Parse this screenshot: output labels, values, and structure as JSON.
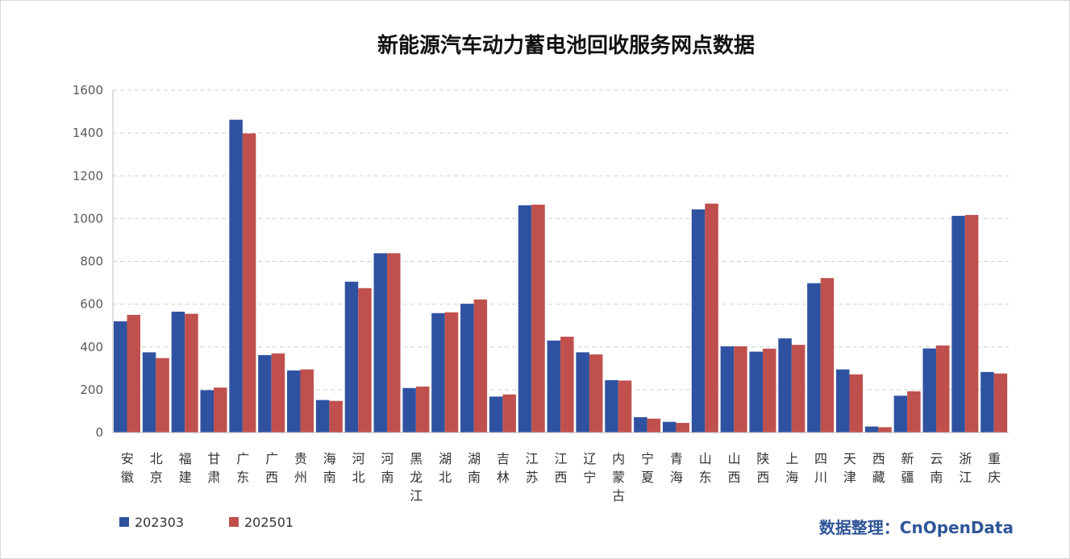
{
  "chart_data": {
    "type": "bar",
    "title": "新能源汽车动力蓄电池回收服务网点数据",
    "xlabel": "",
    "ylabel": "",
    "ylim": [
      0,
      1600
    ],
    "yticks": [
      0,
      200,
      400,
      600,
      800,
      1000,
      1200,
      1400,
      1600
    ],
    "grid": true,
    "legend_position": "bottom-left",
    "categories": [
      "安徽",
      "北京",
      "福建",
      "甘肃",
      "广东",
      "广西",
      "贵州",
      "海南",
      "河北",
      "河南",
      "黑龙江",
      "湖北",
      "湖南",
      "吉林",
      "江苏",
      "江西",
      "辽宁",
      "内蒙古",
      "宁夏",
      "青海",
      "山东",
      "山西",
      "陕西",
      "上海",
      "四川",
      "天津",
      "西藏",
      "新疆",
      "云南",
      "浙江",
      "重庆"
    ],
    "series": [
      {
        "name": "202303",
        "color": "#2F52A0",
        "values": [
          520,
          375,
          565,
          198,
          1462,
          362,
          290,
          152,
          705,
          838,
          208,
          558,
          602,
          168,
          1062,
          430,
          375,
          245,
          72,
          50,
          1043,
          403,
          378,
          440,
          698,
          295,
          28,
          172,
          393,
          1013,
          283
        ]
      },
      {
        "name": "202501",
        "color": "#C0504D",
        "values": [
          550,
          348,
          555,
          210,
          1398,
          370,
          295,
          148,
          675,
          838,
          215,
          562,
          622,
          178,
          1065,
          448,
          365,
          243,
          65,
          45,
          1070,
          403,
          392,
          410,
          722,
          272,
          25,
          193,
          407,
          1017,
          276
        ]
      }
    ]
  },
  "credit": "数据整理：CnOpenData"
}
